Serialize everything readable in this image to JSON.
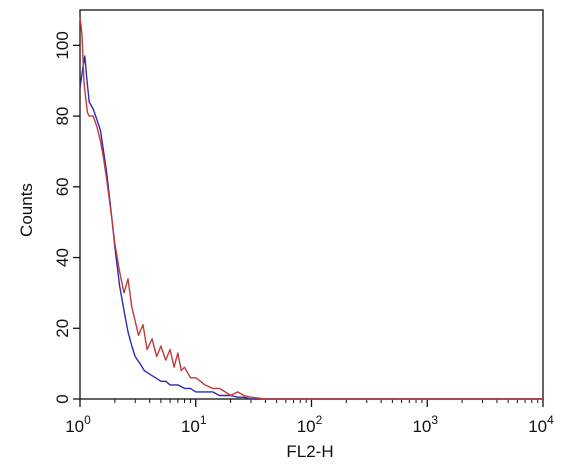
{
  "chart_data": {
    "type": "line",
    "xlabel": "FL2-H",
    "ylabel": "Counts",
    "x_scale": "log",
    "xlim": [
      1,
      10000
    ],
    "ylim": [
      0,
      110
    ],
    "x_ticks": [
      {
        "value": 1,
        "base": "10",
        "exp": "0"
      },
      {
        "value": 10,
        "base": "10",
        "exp": "1"
      },
      {
        "value": 100,
        "base": "10",
        "exp": "2"
      },
      {
        "value": 1000,
        "base": "10",
        "exp": "3"
      },
      {
        "value": 10000,
        "base": "10",
        "exp": "4"
      }
    ],
    "y_ticks": [
      "0",
      "20",
      "40",
      "60",
      "80",
      "100"
    ],
    "y_tick_values": [
      0,
      20,
      40,
      60,
      80,
      100
    ],
    "grid": false,
    "legend": "none",
    "series": [
      {
        "color": "#2b2bb0",
        "x": [
          1.0,
          1.05,
          1.1,
          1.15,
          1.2,
          1.3,
          1.4,
          1.5,
          1.6,
          1.7,
          1.8,
          1.9,
          2.0,
          2.2,
          2.4,
          2.6,
          2.8,
          3.0,
          3.3,
          3.6,
          4.0,
          4.5,
          5.0,
          5.5,
          6.0,
          7.0,
          8.0,
          9.0,
          10,
          12,
          14,
          16,
          18,
          20,
          23,
          26,
          30,
          40,
          60,
          100,
          300,
          1000,
          3000,
          10000
        ],
        "y": [
          88,
          93,
          97,
          90,
          84,
          82,
          79,
          76,
          70,
          64,
          57,
          50,
          43,
          32,
          25,
          19,
          15,
          12,
          10,
          8,
          7,
          6,
          5,
          5,
          4,
          4,
          3,
          3,
          2,
          2,
          2,
          1,
          1,
          1,
          0.5,
          0.5,
          0,
          0,
          0,
          0,
          0,
          0,
          0,
          0
        ]
      },
      {
        "color": "#c23a3a",
        "x": [
          1.0,
          1.04,
          1.08,
          1.12,
          1.16,
          1.2,
          1.3,
          1.4,
          1.5,
          1.6,
          1.7,
          1.8,
          1.9,
          2.0,
          2.2,
          2.4,
          2.6,
          2.8,
          3.0,
          3.2,
          3.5,
          3.8,
          4.2,
          4.6,
          5.0,
          5.5,
          6.0,
          6.5,
          7.0,
          7.5,
          8.0,
          9.0,
          10,
          11,
          12,
          14,
          16,
          18,
          20,
          23,
          26,
          30,
          40,
          60,
          100,
          300,
          1000,
          3000,
          10000
        ],
        "y": [
          108,
          103,
          90,
          85,
          81,
          80,
          80,
          77,
          73,
          68,
          62,
          56,
          50,
          44,
          36,
          30,
          34,
          26,
          22,
          18,
          21,
          14,
          17,
          12,
          15,
          11,
          14,
          9,
          13,
          8,
          9,
          6,
          6,
          5,
          4,
          3,
          3,
          2,
          1,
          2,
          1,
          0.5,
          0,
          0,
          0,
          0,
          0,
          0,
          0
        ]
      }
    ]
  }
}
